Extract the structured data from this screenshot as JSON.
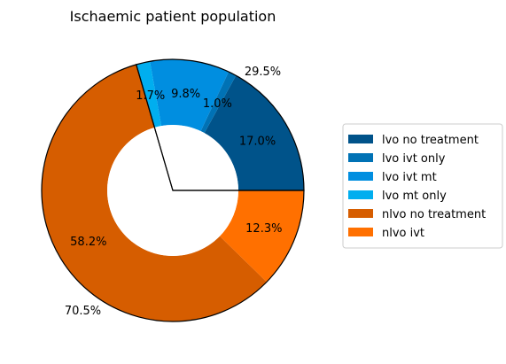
{
  "chart_data": {
    "type": "pie",
    "title": "Ischaemic patient population",
    "slices": [
      {
        "label": "lvo no treatment",
        "value": 17.0,
        "pct_label": "17.0%",
        "color": "#00538a"
      },
      {
        "label": "lvo ivt only",
        "value": 1.0,
        "pct_label": "1.0%",
        "color": "#0072b5"
      },
      {
        "label": "lvo ivt mt",
        "value": 9.8,
        "pct_label": "9.8%",
        "color": "#008ee0"
      },
      {
        "label": "lvo mt only",
        "value": 1.7,
        "pct_label": "1.7%",
        "color": "#00aeef"
      },
      {
        "label": "nlvo no treatment",
        "value": 58.2,
        "pct_label": "58.2%",
        "color": "#d65d00"
      },
      {
        "label": "nlvo ivt",
        "value": 12.3,
        "pct_label": "12.3%",
        "color": "#ff7000"
      }
    ],
    "outer_groups": [
      {
        "label": "29.5%",
        "value": 29.5
      },
      {
        "label": "70.5%",
        "value": 70.5
      }
    ],
    "legend_position": "center-right"
  }
}
